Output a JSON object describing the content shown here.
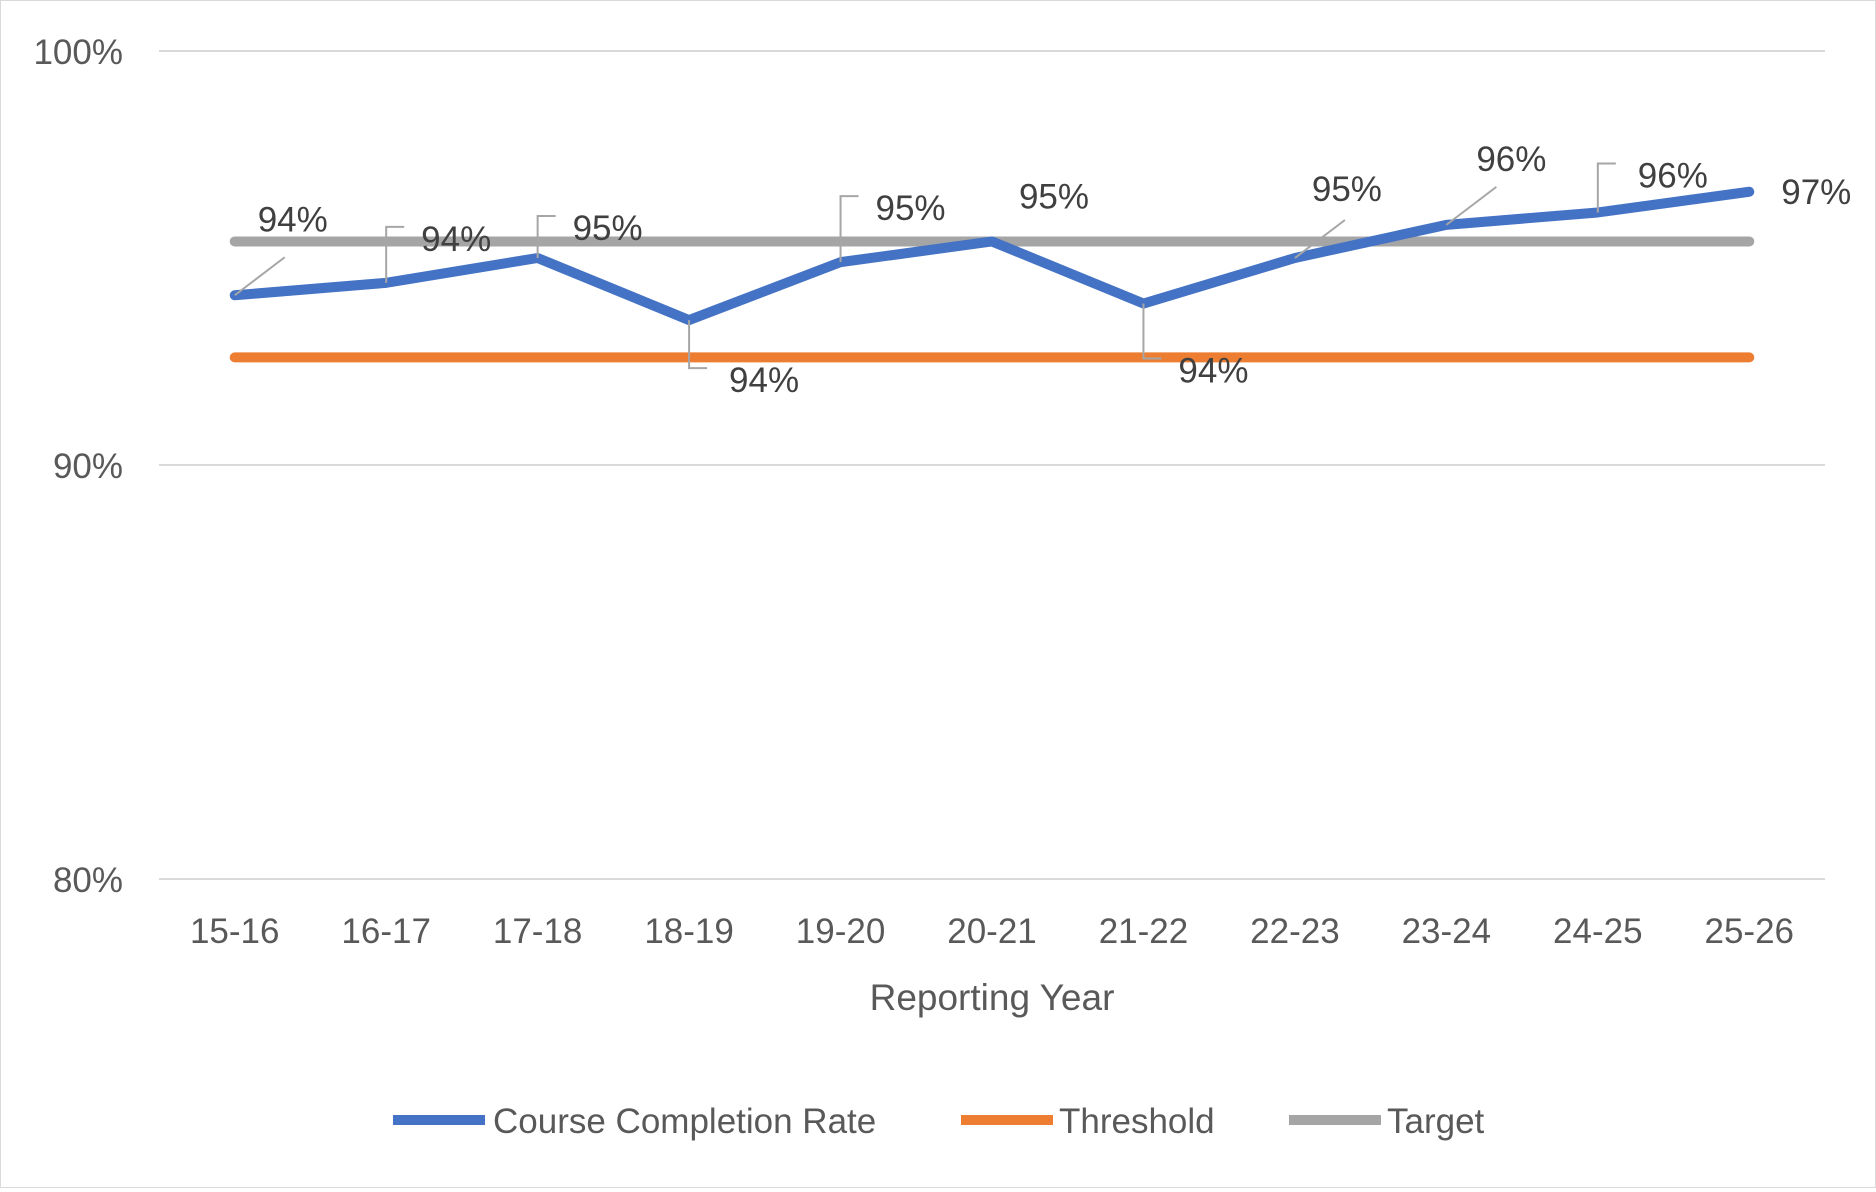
{
  "chart_data": {
    "type": "line",
    "title": "",
    "xlabel": "Reporting Year",
    "ylabel": "",
    "categories": [
      "15-16",
      "16-17",
      "17-18",
      "18-19",
      "19-20",
      "20-21",
      "21-22",
      "22-23",
      "23-24",
      "24-25",
      "25-26"
    ],
    "ylim": [
      80,
      100
    ],
    "yticks": [
      80,
      90,
      100
    ],
    "ytick_labels": [
      "80%",
      "90%",
      "100%"
    ],
    "grid": true,
    "legend_position": "bottom",
    "series": [
      {
        "name": "Course Completion Rate",
        "color": "#4472c4",
        "values": [
          94.1,
          94.4,
          95.0,
          93.5,
          94.9,
          95.4,
          93.9,
          95.0,
          95.8,
          96.1,
          96.6
        ],
        "data_labels": [
          "94%",
          "94%",
          "95%",
          "94%",
          "95%",
          "95%",
          "94%",
          "95%",
          "96%",
          "96%",
          "97%"
        ]
      },
      {
        "name": "Threshold",
        "color": "#ed7d31",
        "values": [
          92.6,
          92.6,
          92.6,
          92.6,
          92.6,
          92.6,
          92.6,
          92.6,
          92.6,
          92.6,
          92.6
        ]
      },
      {
        "name": "Target",
        "color": "#a5a5a5",
        "values": [
          95.4,
          95.4,
          95.4,
          95.4,
          95.4,
          95.4,
          95.4,
          95.4,
          95.4,
          95.4,
          95.4
        ]
      }
    ]
  }
}
